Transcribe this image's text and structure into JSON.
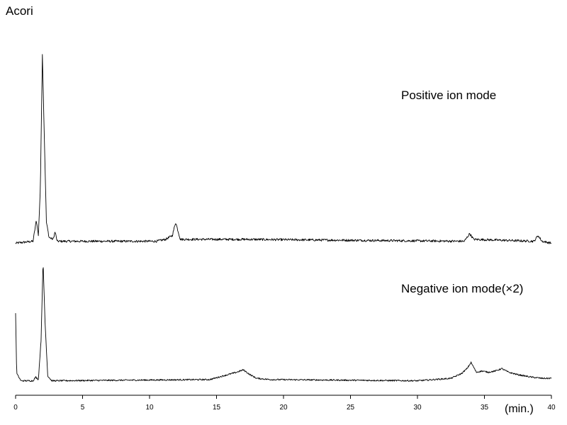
{
  "chart_data": {
    "type": "line",
    "title": "Acori",
    "xlabel": "(min.)",
    "xlim": [
      0,
      40
    ],
    "x_ticks": [
      0,
      5,
      10,
      15,
      20,
      25,
      30,
      35,
      40
    ],
    "x_tick_labels": [
      "0",
      "5",
      "10",
      "15",
      "20",
      "25",
      "30",
      "35",
      "40"
    ],
    "grid": false,
    "legend": "none",
    "series": [
      {
        "name": "Positive ion mode",
        "baseline": 0.02,
        "noise": 0.012,
        "points": [
          [
            0,
            0.01
          ],
          [
            1.3,
            0.02
          ],
          [
            1.55,
            0.13
          ],
          [
            1.7,
            0.05
          ],
          [
            1.85,
            0.3
          ],
          [
            2.0,
            1.0
          ],
          [
            2.15,
            0.55
          ],
          [
            2.3,
            0.12
          ],
          [
            2.5,
            0.04
          ],
          [
            2.8,
            0.03
          ],
          [
            2.95,
            0.07
          ],
          [
            3.1,
            0.02
          ],
          [
            10.5,
            0.02
          ],
          [
            11.2,
            0.03
          ],
          [
            11.7,
            0.05
          ],
          [
            11.95,
            0.12
          ],
          [
            12.1,
            0.08
          ],
          [
            12.3,
            0.03
          ],
          [
            17.0,
            0.03
          ],
          [
            33.5,
            0.02
          ],
          [
            33.9,
            0.06
          ],
          [
            34.2,
            0.03
          ],
          [
            38.7,
            0.02
          ],
          [
            39.0,
            0.05
          ],
          [
            39.3,
            0.02
          ],
          [
            40,
            0.01
          ]
        ]
      },
      {
        "name": "Negative ion mode(×2)",
        "baseline": 0.02,
        "noise": 0.012,
        "points": [
          [
            0,
            0.58
          ],
          [
            0.08,
            0.08
          ],
          [
            0.4,
            0.02
          ],
          [
            1.3,
            0.02
          ],
          [
            1.5,
            0.05
          ],
          [
            1.7,
            0.03
          ],
          [
            1.9,
            0.35
          ],
          [
            2.05,
            1.0
          ],
          [
            2.2,
            0.5
          ],
          [
            2.4,
            0.06
          ],
          [
            2.7,
            0.02
          ],
          [
            14.5,
            0.03
          ],
          [
            15.5,
            0.06
          ],
          [
            16.5,
            0.09
          ],
          [
            17.0,
            0.11
          ],
          [
            17.5,
            0.07
          ],
          [
            18.0,
            0.04
          ],
          [
            19.0,
            0.03
          ],
          [
            30.0,
            0.02
          ],
          [
            32.5,
            0.04
          ],
          [
            33.3,
            0.08
          ],
          [
            33.7,
            0.12
          ],
          [
            34.0,
            0.17
          ],
          [
            34.4,
            0.09
          ],
          [
            34.8,
            0.1
          ],
          [
            35.3,
            0.09
          ],
          [
            35.8,
            0.1
          ],
          [
            36.3,
            0.12
          ],
          [
            36.8,
            0.09
          ],
          [
            37.5,
            0.07
          ],
          [
            38.5,
            0.05
          ],
          [
            39.3,
            0.04
          ],
          [
            40,
            0.04
          ]
        ]
      }
    ]
  }
}
